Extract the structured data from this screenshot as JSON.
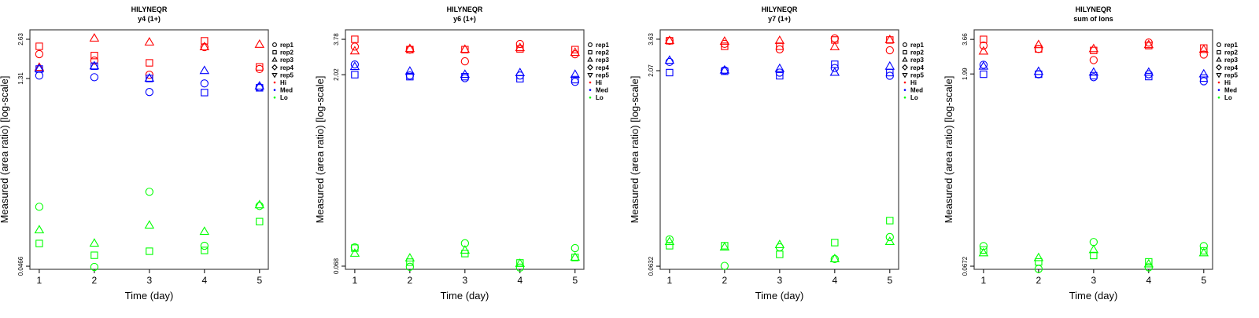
{
  "legend": {
    "reps": [
      {
        "label": "rep1",
        "symbol": "circle"
      },
      {
        "label": "rep2",
        "symbol": "square"
      },
      {
        "label": "rep3",
        "symbol": "triangle-up"
      },
      {
        "label": "rep4",
        "symbol": "diamond"
      },
      {
        "label": "rep5",
        "symbol": "triangle-down"
      }
    ],
    "groups": [
      {
        "label": "Hi",
        "color": "#ff0000"
      },
      {
        "label": "Med",
        "color": "#0000ff"
      },
      {
        "label": "Lo",
        "color": "#00ff00"
      }
    ]
  },
  "chart_data": [
    {
      "type": "scatter",
      "title": "HILYNEQR",
      "subtitle": "y4 (1+)",
      "xlabel": "Time (day)",
      "ylabel": "Measured (area ratio) [log-scale]",
      "x": [
        1,
        2,
        3,
        4,
        5
      ],
      "xlim": [
        0.83,
        5.16
      ],
      "yscale": "log",
      "ylim": [
        0.0441,
        3.11
      ],
      "yticks": [
        {
          "value": 2.63,
          "label": "2.63"
        },
        {
          "value": 1.31,
          "label": "1.31"
        },
        {
          "value": 0.0466,
          "label": "0.0466"
        }
      ],
      "series": [
        {
          "group": "Hi",
          "rep": "rep1",
          "values": [
            2.02,
            1.8,
            1.4,
            2.29,
            1.55
          ]
        },
        {
          "group": "Hi",
          "rep": "rep2",
          "values": [
            2.32,
            1.97,
            1.73,
            2.56,
            1.61
          ]
        },
        {
          "group": "Hi",
          "rep": "rep3",
          "values": [
            1.59,
            2.67,
            2.49,
            2.29,
            2.39
          ]
        },
        {
          "group": "Med",
          "rep": "rep1",
          "values": [
            1.38,
            1.34,
            1.03,
            1.2,
            1.12
          ]
        },
        {
          "group": "Med",
          "rep": "rep2",
          "values": [
            1.55,
            1.63,
            1.31,
            1.02,
            1.11
          ]
        },
        {
          "group": "Med",
          "rep": "rep3",
          "values": [
            1.55,
            1.63,
            1.31,
            1.5,
            1.14
          ]
        },
        {
          "group": "Lo",
          "rep": "rep1",
          "values": [
            0.134,
            0.046,
            0.175,
            0.067,
            0.136
          ]
        },
        {
          "group": "Lo",
          "rep": "rep2",
          "values": [
            0.0698,
            0.0566,
            0.0608,
            0.0617,
            0.103
          ]
        },
        {
          "group": "Lo",
          "rep": "rep3",
          "values": [
            0.0884,
            0.0698,
            0.0962,
            0.086,
            0.138
          ]
        }
      ]
    },
    {
      "type": "scatter",
      "title": "HILYNEQR",
      "subtitle": "y6 (1+)",
      "xlabel": "Time (day)",
      "ylabel": "Measured (area ratio) [log-scale]",
      "x": [
        1,
        2,
        3,
        4,
        5
      ],
      "xlim": [
        0.83,
        5.16
      ],
      "yscale": "log",
      "ylim": [
        0.0643,
        4.47
      ],
      "yticks": [
        {
          "value": 3.78,
          "label": "3.78"
        },
        {
          "value": 2.02,
          "label": "2.02"
        },
        {
          "value": 0.068,
          "label": "0.068"
        }
      ],
      "series": [
        {
          "group": "Hi",
          "rep": "rep1",
          "values": [
            3.32,
            3.15,
            2.56,
            3.48,
            2.9
          ]
        },
        {
          "group": "Hi",
          "rep": "rep2",
          "values": [
            3.78,
            3.15,
            3.15,
            3.19,
            3.15
          ]
        },
        {
          "group": "Hi",
          "rep": "rep3",
          "values": [
            3.06,
            3.19,
            3.15,
            3.24,
            2.98
          ]
        },
        {
          "group": "Med",
          "rep": "rep1",
          "values": [
            2.42,
            1.99,
            1.9,
            1.99,
            1.78
          ]
        },
        {
          "group": "Med",
          "rep": "rep2",
          "values": [
            2.02,
            1.95,
            1.95,
            1.88,
            1.85
          ]
        },
        {
          "group": "Med",
          "rep": "rep3",
          "values": [
            2.32,
            2.14,
            2.02,
            2.08,
            2.02
          ]
        },
        {
          "group": "Lo",
          "rep": "rep1",
          "values": [
            0.0949,
            0.0672,
            0.102,
            0.0663,
            0.0936
          ]
        },
        {
          "group": "Lo",
          "rep": "rep2",
          "values": [
            0.0936,
            0.073,
            0.085,
            0.072,
            0.0793
          ]
        },
        {
          "group": "Lo",
          "rep": "rep3",
          "values": [
            0.085,
            0.0782,
            0.0898,
            0.071,
            0.0793
          ]
        }
      ]
    },
    {
      "type": "scatter",
      "title": "HILYNEQR",
      "subtitle": "y7 (1+)",
      "xlabel": "Time (day)",
      "ylabel": "Measured (area ratio) [log-scale]",
      "x": [
        1,
        2,
        3,
        4,
        5
      ],
      "xlim": [
        0.83,
        5.16
      ],
      "yscale": "log",
      "ylim": [
        0.0598,
        4.29
      ],
      "yticks": [
        {
          "value": 3.63,
          "label": "3.63"
        },
        {
          "value": 2.07,
          "label": "2.07"
        },
        {
          "value": 0.0632,
          "label": "0.0632"
        }
      ],
      "series": [
        {
          "group": "Hi",
          "rep": "rep1",
          "values": [
            3.53,
            3.34,
            3.03,
            3.68,
            2.98
          ]
        },
        {
          "group": "Hi",
          "rep": "rep2",
          "values": [
            3.53,
            3.2,
            3.2,
            3.58,
            3.58
          ]
        },
        {
          "group": "Hi",
          "rep": "rep3",
          "values": [
            3.53,
            3.48,
            3.53,
            3.16,
            3.58
          ]
        },
        {
          "group": "Med",
          "rep": "rep1",
          "values": [
            2.42,
            2.08,
            2.0,
            2.17,
            1.89
          ]
        },
        {
          "group": "Med",
          "rep": "rep2",
          "values": [
            2.0,
            2.05,
            1.89,
            2.32,
            2.0
          ]
        },
        {
          "group": "Med",
          "rep": "rep3",
          "values": [
            2.48,
            2.08,
            2.14,
            2.0,
            2.23
          ]
        },
        {
          "group": "Lo",
          "rep": "rep1",
          "values": [
            0.102,
            0.0636,
            0.0886,
            0.0719,
            0.1063
          ]
        },
        {
          "group": "Lo",
          "rep": "rep2",
          "values": [
            0.0911,
            0.0911,
            0.0781,
            0.0963,
            0.1426
          ]
        },
        {
          "group": "Lo",
          "rep": "rep3",
          "values": [
            0.0976,
            0.0886,
            0.0924,
            0.0719,
            0.0976
          ]
        }
      ]
    },
    {
      "type": "scatter",
      "title": "HILYNEQR",
      "subtitle": "sum of Ions",
      "xlabel": "Time (day)",
      "ylabel": "Measured (area ratio) [log-scale]",
      "x": [
        1,
        2,
        3,
        4,
        5
      ],
      "xlim": [
        0.83,
        5.16
      ],
      "yscale": "log",
      "ylim": [
        0.0636,
        4.33
      ],
      "yticks": [
        {
          "value": 3.66,
          "label": "3.66"
        },
        {
          "value": 1.99,
          "label": "1.99"
        },
        {
          "value": 0.0672,
          "label": "0.0672"
        }
      ],
      "series": [
        {
          "group": "Hi",
          "rep": "rep1",
          "values": [
            3.28,
            3.09,
            2.54,
            3.46,
            2.8
          ]
        },
        {
          "group": "Hi",
          "rep": "rep2",
          "values": [
            3.66,
            3.09,
            3.01,
            3.28,
            3.14
          ]
        },
        {
          "group": "Hi",
          "rep": "rep3",
          "values": [
            2.96,
            3.32,
            3.09,
            3.32,
            3.05
          ]
        },
        {
          "group": "Med",
          "rep": "rep1",
          "values": [
            2.34,
            1.98,
            1.88,
            1.98,
            1.75
          ]
        },
        {
          "group": "Med",
          "rep": "rep2",
          "values": [
            1.98,
            1.98,
            1.93,
            1.9,
            1.85
          ]
        },
        {
          "group": "Med",
          "rep": "rep3",
          "values": [
            2.27,
            2.07,
            2.04,
            2.04,
            1.98
          ]
        },
        {
          "group": "Lo",
          "rep": "rep1",
          "values": [
            0.0958,
            0.064,
            0.1029,
            0.0659,
            0.0958
          ]
        },
        {
          "group": "Lo",
          "rep": "rep2",
          "values": [
            0.0894,
            0.0725,
            0.0811,
            0.0725,
            0.0881
          ]
        },
        {
          "group": "Lo",
          "rep": "rep3",
          "values": [
            0.0846,
            0.0777,
            0.0894,
            0.0696,
            0.0846
          ]
        }
      ]
    }
  ]
}
